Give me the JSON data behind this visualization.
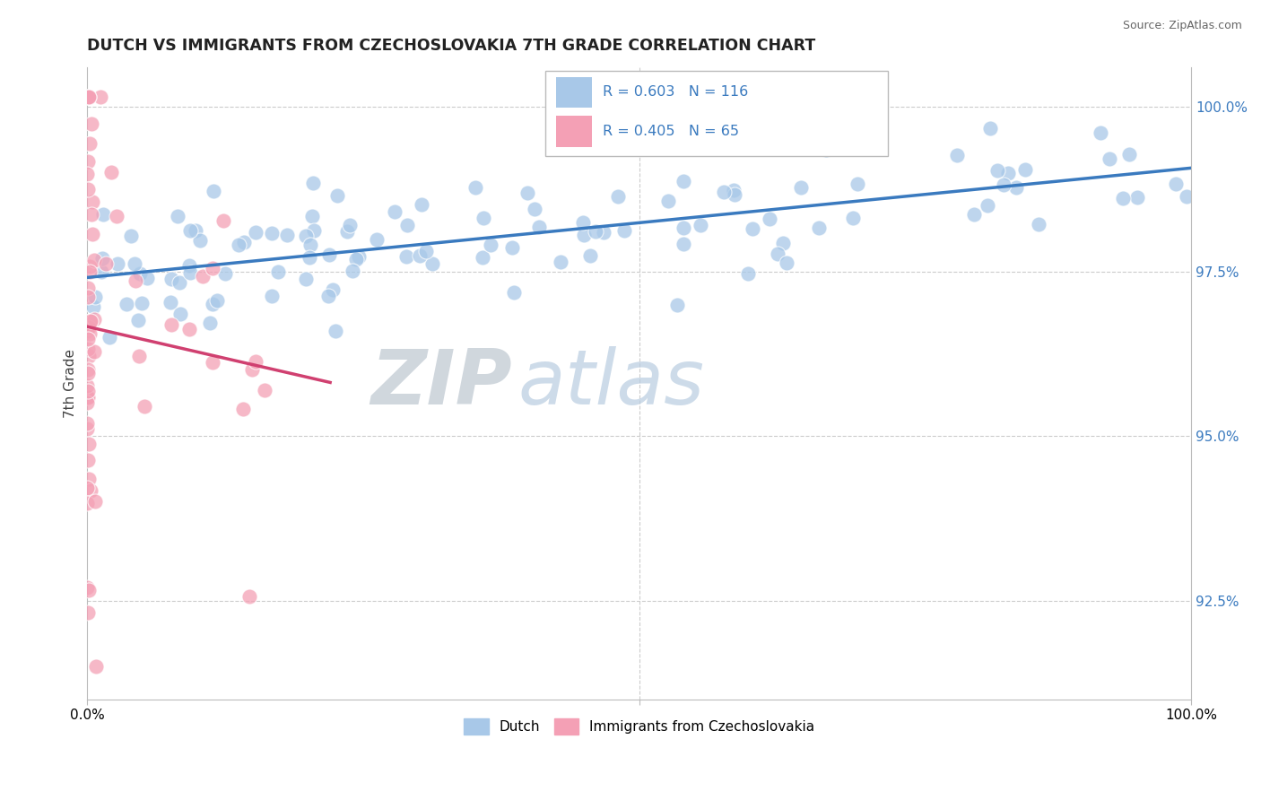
{
  "title": "DUTCH VS IMMIGRANTS FROM CZECHOSLOVAKIA 7TH GRADE CORRELATION CHART",
  "source": "Source: ZipAtlas.com",
  "ylabel": "7th Grade",
  "right_yticks": [
    92.5,
    95.0,
    97.5,
    100.0
  ],
  "right_ytick_labels": [
    "92.5%",
    "95.0%",
    "97.5%",
    "100.0%"
  ],
  "legend_blue_label": "Dutch",
  "legend_pink_label": "Immigrants from Czechoslovakia",
  "blue_R": 0.603,
  "blue_N": 116,
  "pink_R": 0.405,
  "pink_N": 65,
  "blue_color": "#a8c8e8",
  "pink_color": "#f4a0b5",
  "blue_line_color": "#3a7abf",
  "pink_line_color": "#d04070",
  "watermark_zip": "ZIP",
  "watermark_atlas": "atlas",
  "background_color": "#ffffff",
  "grid_color": "#cccccc",
  "ylim_min": 91.0,
  "ylim_max": 100.6,
  "xlim_min": 0.0,
  "xlim_max": 1.0
}
